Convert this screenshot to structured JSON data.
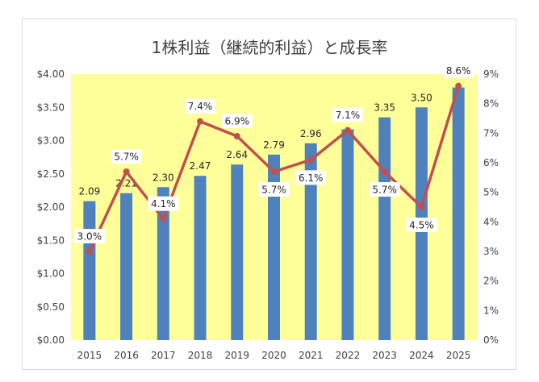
{
  "chart_data": {
    "type": "bar",
    "title": "1株利益（継続的利益）と成長率",
    "categories": [
      "2015",
      "2016",
      "2017",
      "2018",
      "2019",
      "2020",
      "2021",
      "2022",
      "2023",
      "2024",
      "2025"
    ],
    "series": [
      {
        "type": "bar",
        "axis": "left",
        "values": [
          2.09,
          2.21,
          2.3,
          2.47,
          2.64,
          2.79,
          2.96,
          3.17,
          3.35,
          3.5,
          3.8
        ],
        "labels": [
          "2.09",
          "2.21",
          "2.30",
          "2.47",
          "2.64",
          "2.79",
          "2.96",
          "",
          "3.35",
          "3.50",
          ""
        ],
        "color": "#4f81bd"
      },
      {
        "type": "line",
        "axis": "right",
        "values": [
          3.0,
          5.7,
          4.1,
          7.4,
          6.9,
          5.7,
          6.1,
          7.1,
          5.7,
          4.5,
          8.6
        ],
        "labels": [
          "3.0%",
          "5.7%",
          "4.1%",
          "7.4%",
          "6.9%",
          "5.7%",
          "6.1%",
          "7.1%",
          "5.7%",
          "4.5%",
          "8.6%"
        ],
        "color": "#c0504d"
      }
    ],
    "left_axis": {
      "ylim": [
        0,
        4
      ],
      "ticks": [
        "$0.00",
        "$0.50",
        "$1.00",
        "$1.50",
        "$2.00",
        "$2.50",
        "$3.00",
        "$3.50",
        "$4.00"
      ]
    },
    "right_axis": {
      "ylim": [
        0,
        9
      ],
      "ticks": [
        "0%",
        "1%",
        "2%",
        "3%",
        "4%",
        "5%",
        "6%",
        "7%",
        "8%",
        "9%"
      ]
    },
    "plot_background": "#ffff99",
    "grid": false,
    "legend": "none"
  }
}
